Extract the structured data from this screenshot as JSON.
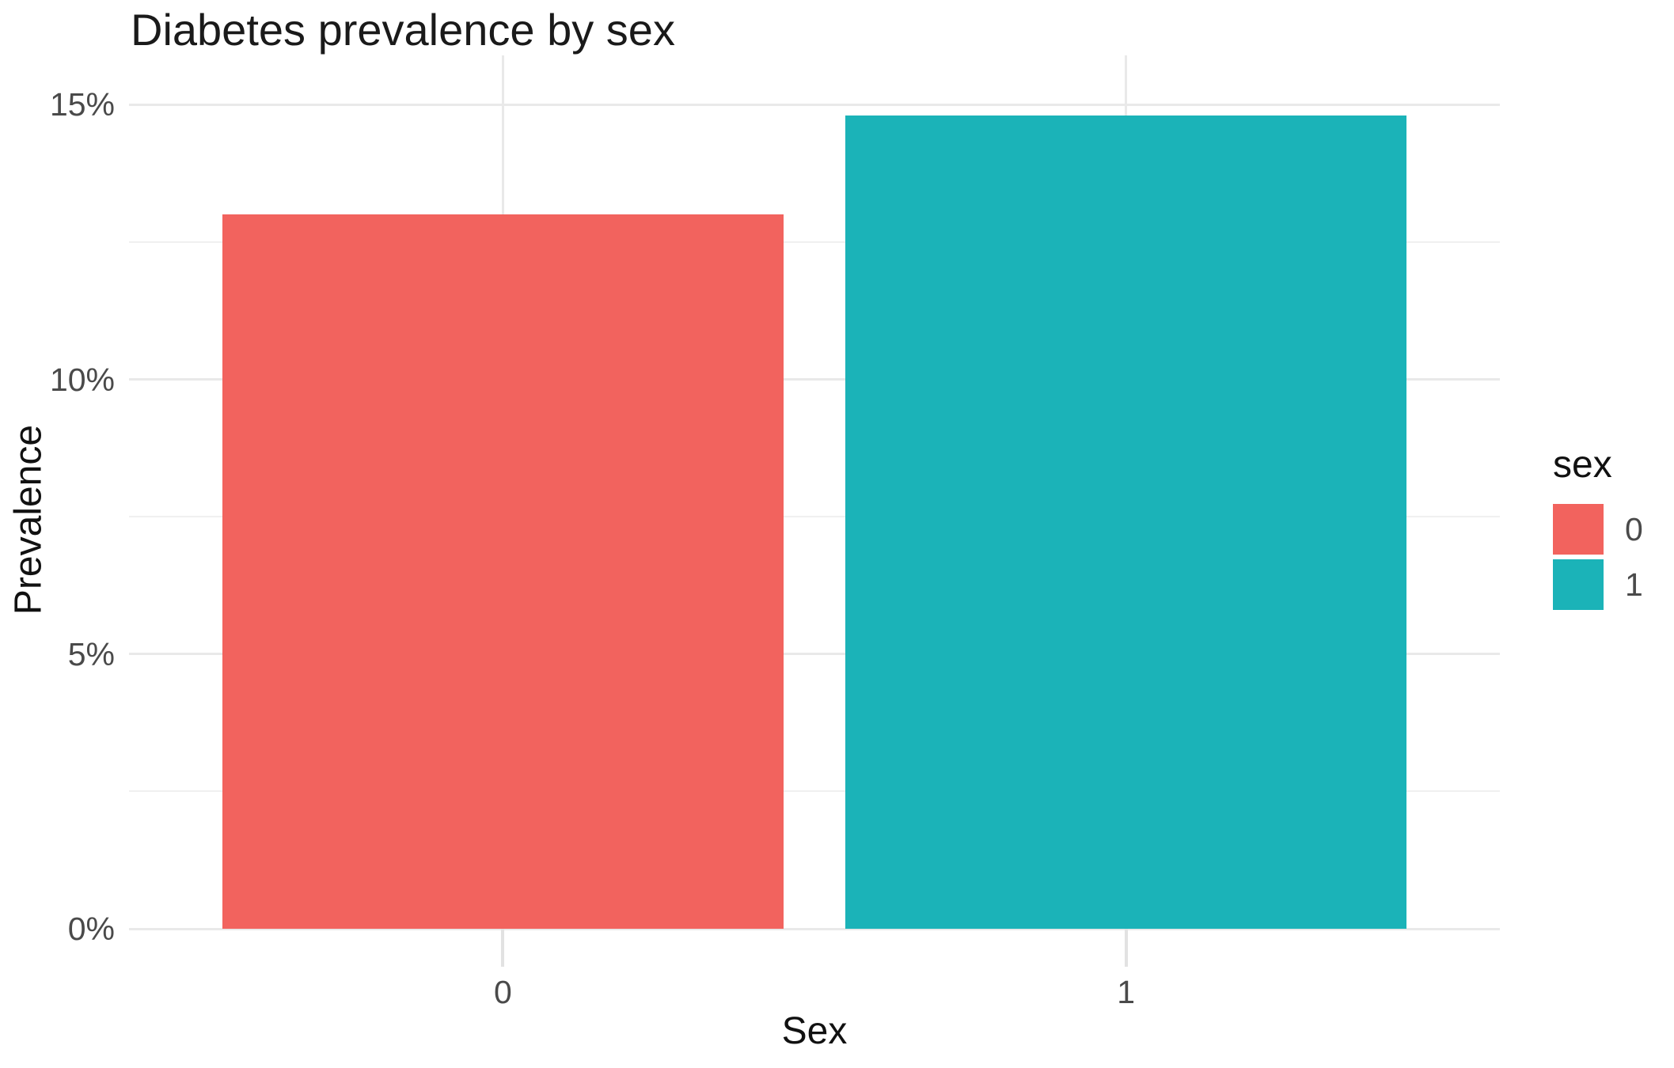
{
  "figure": {
    "title": "Diabetes prevalence by sex",
    "x_axis_title": "Sex",
    "y_axis_title": "Prevalence"
  },
  "legend": {
    "title": "sex",
    "entries": [
      {
        "label": "0",
        "color": "#F2635E"
      },
      {
        "label": "1",
        "color": "#1BB3B8"
      }
    ]
  },
  "chart_data": {
    "type": "bar",
    "title": "Diabetes prevalence by sex",
    "xlabel": "Sex",
    "ylabel": "Prevalence",
    "categories": [
      "0",
      "1"
    ],
    "series": [
      {
        "name": "sex",
        "values": [
          0.13,
          0.148
        ]
      }
    ],
    "value_format": "percent",
    "ylim": [
      0,
      0.159
    ],
    "y_major_ticks": [
      {
        "value": 0.0,
        "label": "0%"
      },
      {
        "value": 0.05,
        "label": "5%"
      },
      {
        "value": 0.1,
        "label": "10%"
      },
      {
        "value": 0.15,
        "label": "15%"
      }
    ],
    "y_minor_ticks": [
      0.025,
      0.075,
      0.125
    ],
    "x_tick_labels": [
      "0",
      "1"
    ],
    "bar_colors": [
      "#F2635E",
      "#1BB3B8"
    ],
    "grid": true,
    "legend_position": "right"
  }
}
